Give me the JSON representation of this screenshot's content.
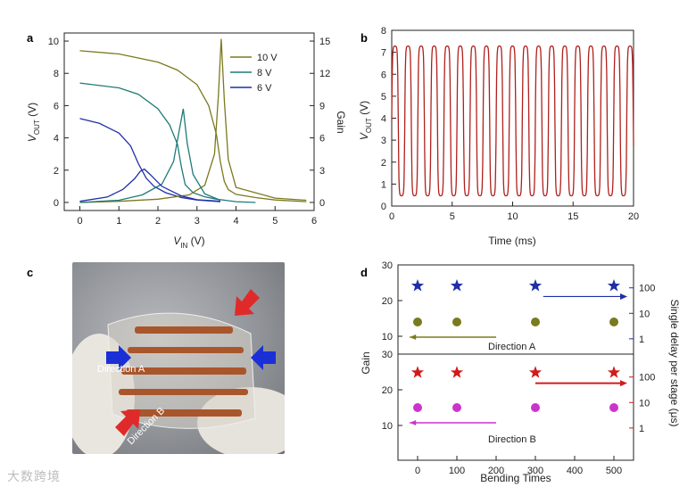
{
  "panels": {
    "a": "a",
    "b": "b",
    "c": "c",
    "d": "d"
  },
  "chart_data": [
    {
      "type": "line",
      "panel": "a",
      "xlabel": "V_IN (V)",
      "xlabel_main": "V",
      "xlabel_sub": "IN",
      "xlabel_unit": " (V)",
      "ylabel_left_main": "V",
      "ylabel_left_sub": "OUT",
      "ylabel_left_unit": " (V)",
      "ylabel_right": "Gain",
      "xlim": [
        -0.4,
        6.0
      ],
      "ylim_left": [
        -0.5,
        10.5
      ],
      "ylim_right": [
        -0.75,
        15.75
      ],
      "xticks": [
        0,
        1,
        2,
        3,
        4,
        5,
        6
      ],
      "yticks_left": [
        0,
        2,
        4,
        6,
        8,
        10
      ],
      "yticks_right": [
        0,
        3,
        6,
        9,
        12,
        15
      ],
      "legend_position": "top-right",
      "series": [
        {
          "name": "10 V",
          "color": "#7a7a1e",
          "kind": "vout",
          "x": [
            0,
            1,
            2,
            2.5,
            3,
            3.3,
            3.5,
            3.6,
            3.7,
            3.8,
            4,
            4.5,
            5,
            5.8
          ],
          "y": [
            9.4,
            9.2,
            8.7,
            8.2,
            7.3,
            6.0,
            4.2,
            2.5,
            1.3,
            0.8,
            0.5,
            0.3,
            0.15,
            0.05
          ]
        },
        {
          "name": "8 V",
          "color": "#1e7a78",
          "kind": "vout",
          "x": [
            0,
            1,
            1.5,
            2,
            2.3,
            2.5,
            2.6,
            2.7,
            2.9,
            3.2,
            3.5,
            4,
            4.5
          ],
          "y": [
            7.4,
            7.1,
            6.7,
            5.8,
            4.8,
            3.6,
            2.2,
            1.1,
            0.6,
            0.35,
            0.2,
            0.05,
            0.0
          ]
        },
        {
          "name": "6 V",
          "color": "#1f2fa8",
          "kind": "vout",
          "x": [
            0,
            0.5,
            1,
            1.3,
            1.5,
            1.7,
            1.9,
            2.2,
            2.6,
            3.0,
            3.6
          ],
          "y": [
            5.2,
            4.9,
            4.3,
            3.5,
            2.4,
            1.5,
            1.0,
            0.6,
            0.3,
            0.15,
            0.05
          ]
        },
        {
          "name": "10 V gain",
          "color": "#7a7a1e",
          "kind": "gain",
          "x": [
            0,
            1,
            2,
            2.8,
            3.2,
            3.45,
            3.55,
            3.62,
            3.7,
            3.8,
            4,
            5,
            5.8
          ],
          "y": [
            0.0,
            0.1,
            0.3,
            0.7,
            1.6,
            4.5,
            10.0,
            15.2,
            9.5,
            4.0,
            1.4,
            0.4,
            0.2
          ]
        },
        {
          "name": "8 V gain",
          "color": "#1e7a78",
          "kind": "gain",
          "x": [
            0,
            1,
            1.6,
            2.1,
            2.4,
            2.55,
            2.65,
            2.75,
            2.9,
            3.2,
            3.6
          ],
          "y": [
            0.0,
            0.2,
            0.7,
            1.7,
            3.8,
            6.8,
            8.7,
            5.5,
            2.6,
            0.8,
            0.2
          ]
        },
        {
          "name": "6 V gain",
          "color": "#1f2fa8",
          "kind": "gain",
          "x": [
            0,
            0.7,
            1.1,
            1.4,
            1.55,
            1.65,
            1.8,
            2.1,
            2.6,
            3.0,
            3.6
          ],
          "y": [
            0.1,
            0.5,
            1.2,
            2.2,
            2.9,
            3.1,
            2.6,
            1.5,
            0.6,
            0.25,
            0.1
          ]
        }
      ]
    },
    {
      "type": "line",
      "panel": "b",
      "xlabel": "Time (ms)",
      "ylabel_main": "V",
      "ylabel_sub": "OUT",
      "ylabel_unit": " (V)",
      "xlim": [
        0,
        20
      ],
      "ylim": [
        0,
        8
      ],
      "xticks": [
        0,
        5,
        10,
        15,
        20
      ],
      "yticks": [
        0,
        1,
        2,
        3,
        4,
        5,
        6,
        7,
        8
      ],
      "series": [
        {
          "name": "",
          "color": "#b0201c",
          "period_ms": 1.08,
          "high": 7.3,
          "low": 0.45
        }
      ]
    },
    {
      "type": "scatter",
      "panel": "d",
      "xlabel": "Bending Times",
      "ylabel_left": "Gain",
      "ylabel_right": "Single delay per stage (μs)",
      "xlim": [
        -50,
        550
      ],
      "xticks": [
        0,
        100,
        200,
        300,
        400,
        500
      ],
      "subplots": [
        {
          "name": "Direction A",
          "ylim_gain": [
            5,
            30
          ],
          "gain_ticks": [
            10,
            20,
            30
          ],
          "delay_ticks": [
            "1",
            "10",
            "100"
          ],
          "delay_log_ticks": [
            0,
            1,
            2
          ],
          "delay_log_range": [
            -0.6,
            2.9
          ],
          "gain_color": "#7a7a1e",
          "delay_color": "#1f2fa8",
          "x": [
            0,
            100,
            300,
            500
          ],
          "gain": [
            14,
            14,
            14,
            14
          ],
          "delay": [
            120,
            120,
            120,
            120
          ]
        },
        {
          "name": "Direction B",
          "ylim_gain": [
            5,
            30
          ],
          "gain_ticks": [
            10,
            20,
            30
          ],
          "delay_ticks": [
            "1",
            "10",
            "100"
          ],
          "delay_log_ticks": [
            0,
            1,
            2
          ],
          "delay_log_range": [
            -0.6,
            2.9
          ],
          "gain_color": "#cc33cc",
          "delay_color": "#d11c1c",
          "x": [
            0,
            100,
            300,
            500
          ],
          "gain": [
            15,
            15,
            15,
            15
          ],
          "delay": [
            150,
            150,
            150,
            150
          ]
        }
      ]
    }
  ],
  "photo": {
    "direction_a": "Direction A",
    "direction_b": "Direction B"
  },
  "watermark": "大数跨境"
}
